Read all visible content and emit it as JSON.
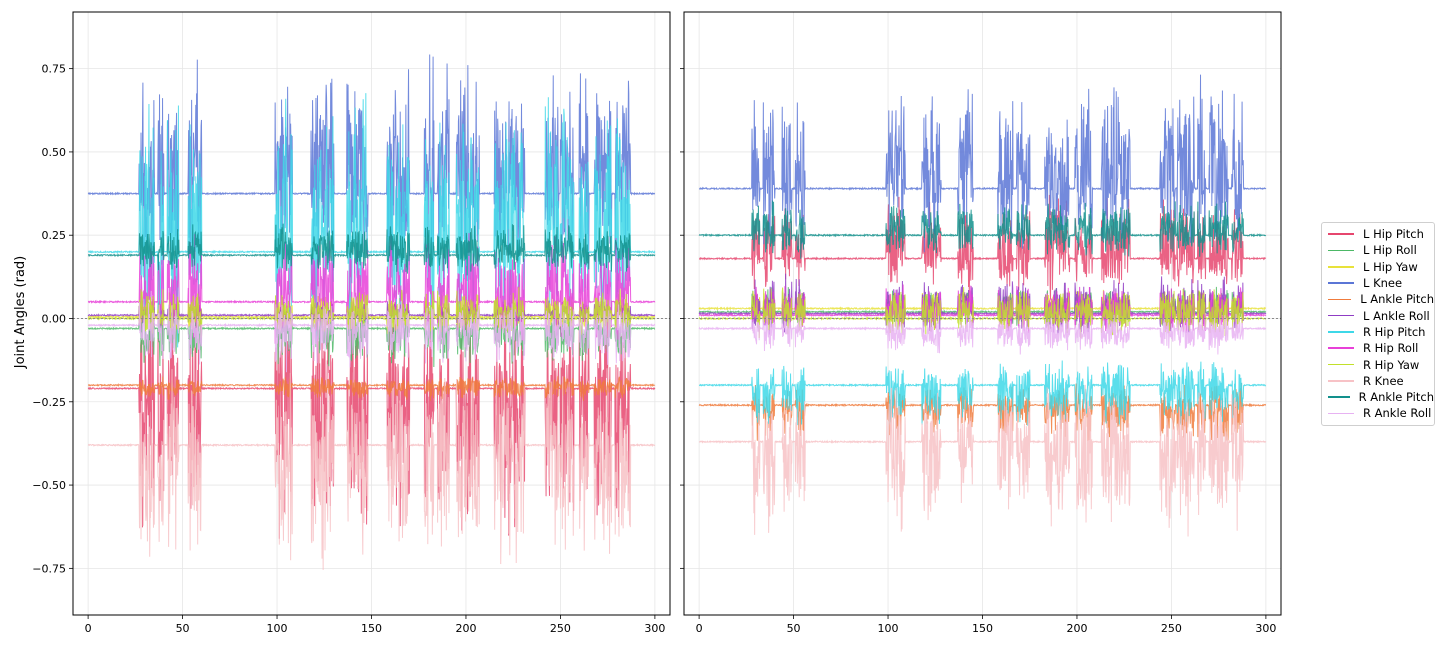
{
  "figure": {
    "ylabel": "Joint Angles (rad)"
  },
  "chart_data": [
    {
      "type": "line",
      "panel": "left",
      "xlim": [
        -8,
        308
      ],
      "ylim": [
        -0.89,
        0.92
      ],
      "xticks": [
        0,
        50,
        100,
        150,
        200,
        250,
        300
      ],
      "yticks": [
        -0.75,
        -0.5,
        -0.25,
        0.0,
        0.25,
        0.5,
        0.75
      ],
      "ytick_labels": [
        "−0.75",
        "−0.50",
        "−0.25",
        "0.00",
        "0.25",
        "0.50",
        "0.75"
      ],
      "ylabel": "Joint Angles (rad)",
      "grid": true,
      "zero_line": true,
      "active_segments": [
        [
          27,
          35
        ],
        [
          37,
          40
        ],
        [
          42,
          48
        ],
        [
          53,
          60
        ],
        [
          99,
          108
        ],
        [
          118,
          130
        ],
        [
          137,
          148
        ],
        [
          158,
          170
        ],
        [
          178,
          183
        ],
        [
          185,
          191
        ],
        [
          195,
          207
        ],
        [
          215,
          231
        ],
        [
          242,
          249
        ],
        [
          250,
          257
        ],
        [
          260,
          265
        ],
        [
          268,
          277
        ],
        [
          279,
          287
        ]
      ],
      "series": [
        {
          "name": "L Hip Pitch",
          "color": "#e6466e",
          "baseline": -0.21,
          "amp": 0.48
        },
        {
          "name": "L Hip Roll",
          "color": "#4cb866",
          "baseline": -0.03,
          "amp": 0.12
        },
        {
          "name": "L Hip Yaw",
          "color": "#e8e23a",
          "baseline": 0.005,
          "amp": 0.08
        },
        {
          "name": "L Knee",
          "color": "#5b76d6",
          "baseline": 0.375,
          "amp": 0.42
        },
        {
          "name": "L Ankle Pitch",
          "color": "#f07b3c",
          "baseline": -0.2,
          "amp": 0.05
        },
        {
          "name": "L Ankle Roll",
          "color": "#8f3cc4",
          "baseline": 0.01,
          "amp": 0.05
        },
        {
          "name": "R Hip Pitch",
          "color": "#3ed8e8",
          "baseline": 0.2,
          "amp": 0.5
        },
        {
          "name": "R Hip Roll",
          "color": "#e840d8",
          "baseline": 0.05,
          "amp": 0.22
        },
        {
          "name": "R Hip Yaw",
          "color": "#c2e02a",
          "baseline": 0.0,
          "amp": 0.1
        },
        {
          "name": "R Knee",
          "color": "#f7c2c6",
          "baseline": -0.38,
          "amp": 0.4
        },
        {
          "name": "R Ankle Pitch",
          "color": "#12908c",
          "baseline": 0.19,
          "amp": 0.1
        },
        {
          "name": "R Ankle Roll",
          "color": "#e7b2f2",
          "baseline": -0.02,
          "amp": 0.14
        }
      ]
    },
    {
      "type": "line",
      "panel": "right",
      "xlim": [
        -8,
        308
      ],
      "ylim": [
        -0.89,
        0.92
      ],
      "xticks": [
        0,
        50,
        100,
        150,
        200,
        250,
        300
      ],
      "grid": true,
      "zero_line": true,
      "active_segments": [
        [
          28,
          32
        ],
        [
          34,
          40
        ],
        [
          44,
          49
        ],
        [
          51,
          56
        ],
        [
          99,
          109
        ],
        [
          118,
          128
        ],
        [
          137,
          145
        ],
        [
          158,
          166
        ],
        [
          168,
          175
        ],
        [
          183,
          196
        ],
        [
          199,
          208
        ],
        [
          213,
          228
        ],
        [
          244,
          252
        ],
        [
          253,
          262
        ],
        [
          264,
          268
        ],
        [
          270,
          280
        ],
        [
          282,
          288
        ]
      ],
      "series": [
        {
          "name": "L Hip Pitch",
          "color": "#e6466e",
          "baseline": 0.18,
          "amp": 0.2
        },
        {
          "name": "L Hip Roll",
          "color": "#4cb866",
          "baseline": 0.02,
          "amp": 0.08
        },
        {
          "name": "L Hip Yaw",
          "color": "#e8e23a",
          "baseline": 0.03,
          "amp": 0.06
        },
        {
          "name": "L Knee",
          "color": "#5b76d6",
          "baseline": 0.39,
          "amp": 0.34
        },
        {
          "name": "L Ankle Pitch",
          "color": "#f07b3c",
          "baseline": -0.26,
          "amp": 0.12
        },
        {
          "name": "L Ankle Roll",
          "color": "#8f3cc4",
          "baseline": 0.015,
          "amp": 0.12
        },
        {
          "name": "R Hip Pitch",
          "color": "#3ed8e8",
          "baseline": -0.2,
          "amp": 0.14
        },
        {
          "name": "R Hip Roll",
          "color": "#e840d8",
          "baseline": 0.01,
          "amp": 0.1
        },
        {
          "name": "R Hip Yaw",
          "color": "#c2e02a",
          "baseline": 0.0,
          "amp": 0.1
        },
        {
          "name": "R Knee",
          "color": "#f7c2c6",
          "baseline": -0.37,
          "amp": 0.3
        },
        {
          "name": "R Ankle Pitch",
          "color": "#12908c",
          "baseline": 0.25,
          "amp": 0.12
        },
        {
          "name": "R Ankle Roll",
          "color": "#e7b2f2",
          "baseline": -0.03,
          "amp": 0.08
        }
      ]
    }
  ],
  "legend": {
    "placement": "right",
    "items": [
      {
        "label": "L Hip Pitch",
        "color": "#e6466e"
      },
      {
        "label": "L Hip Roll",
        "color": "#4cb866"
      },
      {
        "label": "L Hip Yaw",
        "color": "#e8e23a"
      },
      {
        "label": "L Knee",
        "color": "#5b76d6"
      },
      {
        "label": "L Ankle Pitch",
        "color": "#f07b3c"
      },
      {
        "label": "L Ankle Roll",
        "color": "#8f3cc4"
      },
      {
        "label": "R Hip Pitch",
        "color": "#3ed8e8"
      },
      {
        "label": "R Hip Roll",
        "color": "#e840d8"
      },
      {
        "label": "R Hip Yaw",
        "color": "#c2e02a"
      },
      {
        "label": "R Knee",
        "color": "#f7c2c6"
      },
      {
        "label": "R Ankle Pitch",
        "color": "#12908c"
      },
      {
        "label": "R Ankle Roll",
        "color": "#e7b2f2"
      }
    ]
  }
}
